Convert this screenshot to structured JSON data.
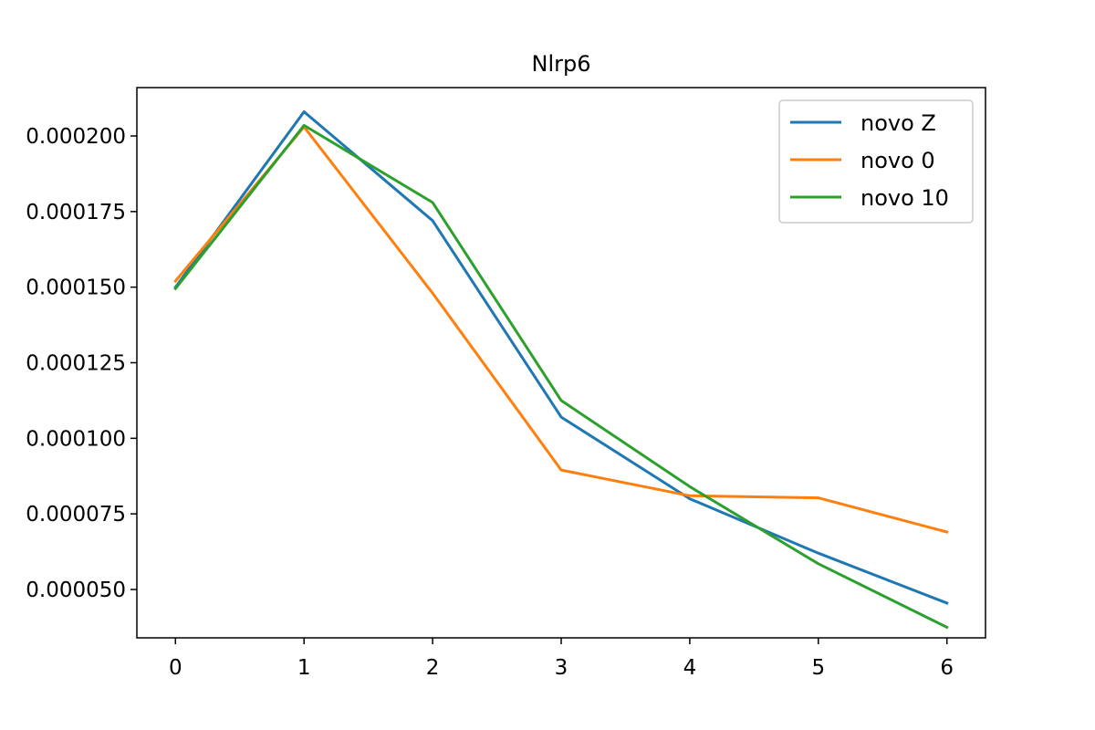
{
  "chart_data": {
    "type": "line",
    "title": "Nlrp6",
    "xlabel": "",
    "ylabel": "",
    "x": [
      0,
      1,
      2,
      3,
      4,
      5,
      6
    ],
    "x_ticks": [
      0,
      1,
      2,
      3,
      4,
      5,
      6
    ],
    "x_tick_labels": [
      "0",
      "1",
      "2",
      "3",
      "4",
      "5",
      "6"
    ],
    "xlim": [
      -0.3,
      6.3
    ],
    "ylim": [
      3.4e-05,
      0.000216
    ],
    "y_ticks": [
      5e-05,
      7.5e-05,
      0.0001,
      0.000125,
      0.00015,
      0.000175,
      0.0002
    ],
    "y_tick_labels": [
      "0.000050",
      "0.000075",
      "0.000100",
      "0.000125",
      "0.000150",
      "0.000175",
      "0.000200"
    ],
    "grid": false,
    "legend_position": "top-right",
    "series": [
      {
        "name": "novo Z",
        "color": "#1f77b4",
        "values": [
          0.00015,
          0.000208,
          0.000172,
          0.000107,
          8e-05,
          6.2e-05,
          4.55e-05
        ]
      },
      {
        "name": "novo 0",
        "color": "#ff7f0e",
        "values": [
          0.000152,
          0.000203,
          0.000148,
          8.95e-05,
          8.1e-05,
          8.03e-05,
          6.9e-05
        ]
      },
      {
        "name": "novo 10",
        "color": "#2ca02c",
        "values": [
          0.0001495,
          0.0002035,
          0.000178,
          0.0001125,
          8.4e-05,
          5.85e-05,
          3.75e-05
        ]
      }
    ]
  }
}
